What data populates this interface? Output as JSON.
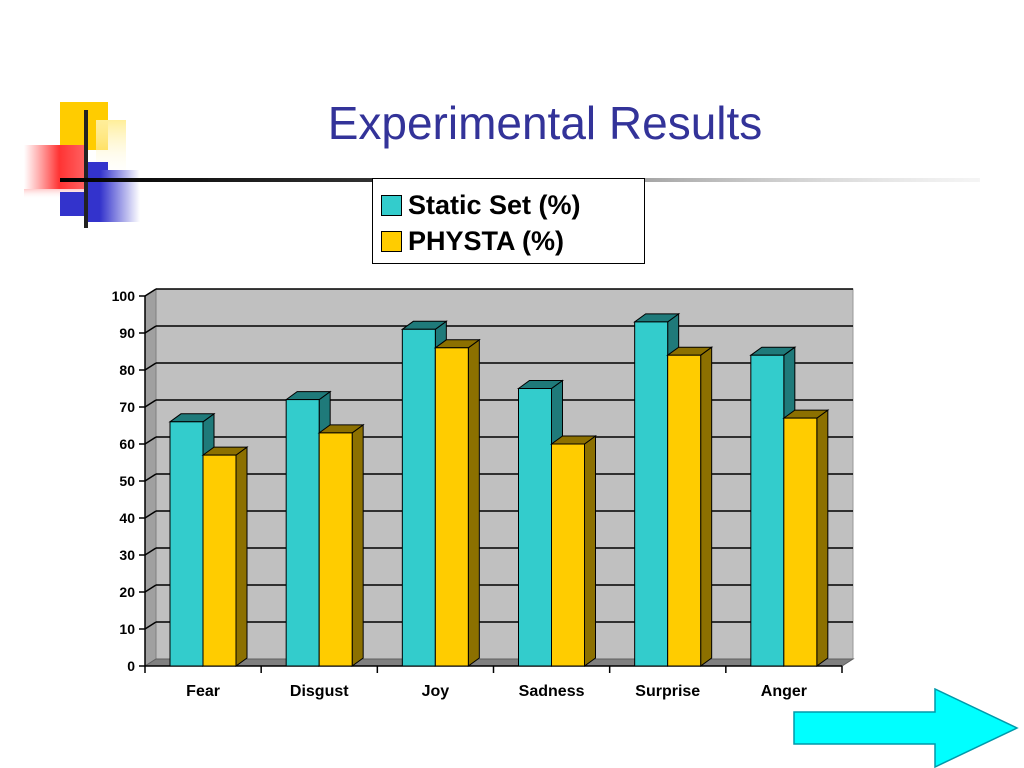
{
  "slide": {
    "title": "Experimental Results"
  },
  "chart_data": {
    "type": "bar",
    "categories": [
      "Fear",
      "Disgust",
      "Joy",
      "Sadness",
      "Surprise",
      "Anger"
    ],
    "series": [
      {
        "name": "Static Set (%)",
        "values": [
          66,
          72,
          91,
          75,
          93,
          84
        ],
        "color": "#33CCCC",
        "side_color": "#1F7A7A"
      },
      {
        "name": "PHYSTA (%)",
        "values": [
          57,
          63,
          86,
          60,
          84,
          67
        ],
        "color": "#FFCC00",
        "side_color": "#8C7000"
      }
    ],
    "ylim": [
      0,
      100
    ],
    "yticks": [
      0,
      10,
      20,
      30,
      40,
      50,
      60,
      70,
      80,
      90,
      100
    ],
    "grid": true,
    "legend_position": "top-right",
    "plot_background": "#C0C0C0",
    "xlabel": "",
    "ylabel": ""
  },
  "navigation": {
    "next_icon": "right-arrow-icon",
    "arrow_color": "#00FFFF"
  },
  "decoration": {
    "colors": [
      "#FFCC00",
      "#FF0000",
      "#3333CC"
    ]
  }
}
